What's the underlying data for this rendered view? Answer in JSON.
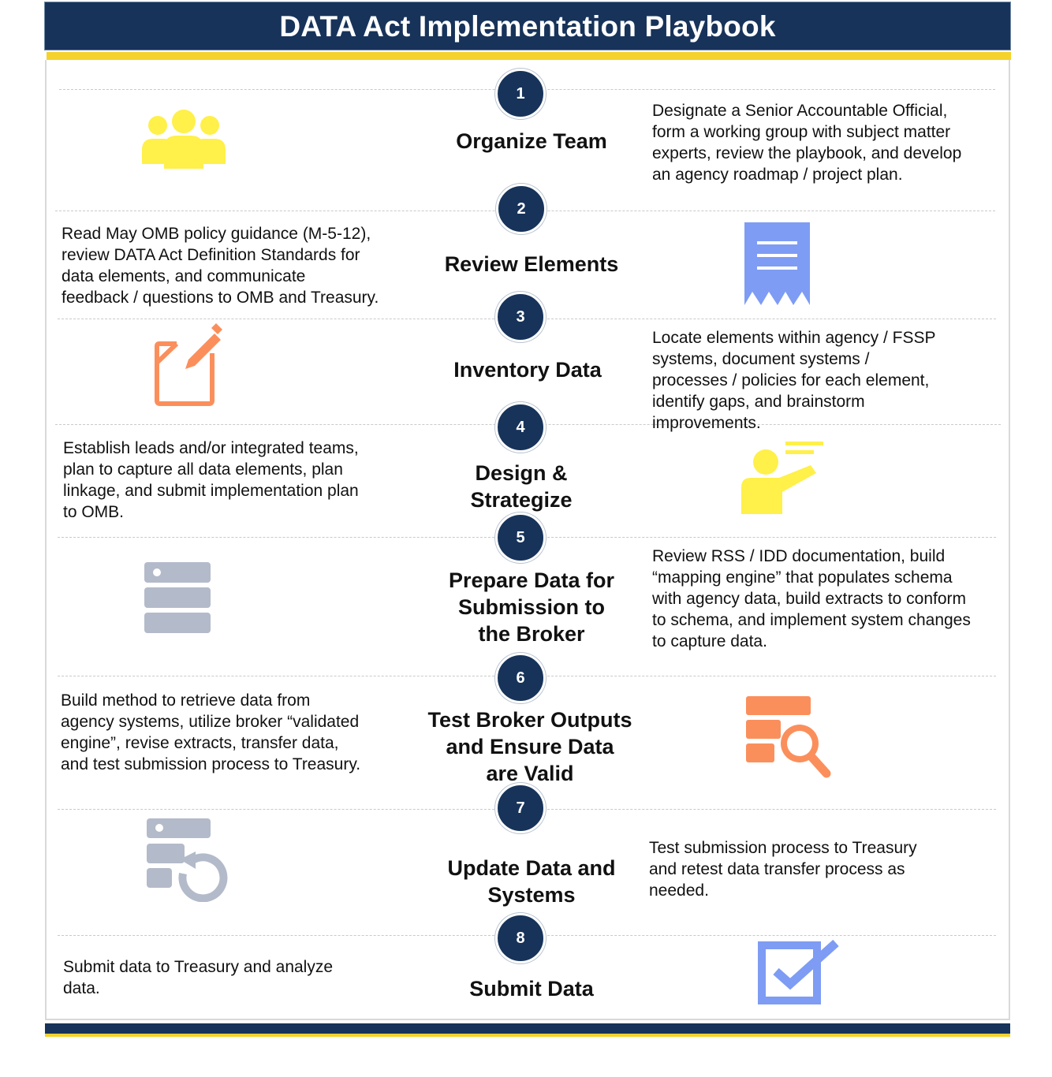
{
  "header": {
    "title": "DATA Act Implementation Playbook"
  },
  "colors": {
    "navy": "#17335a",
    "gold": "#f5d22c",
    "icon_yellow": "#fff04a",
    "icon_blue": "#7e9cf4",
    "icon_orange": "#fb8f5c",
    "icon_gray": "#b3bac9"
  },
  "steps": [
    {
      "number": "1",
      "title": "Organize Team",
      "description": "Designate a Senior Accountable Official,\nform a working group with subject matter\nexperts, review the playbook, and develop\nan agency roadmap / project plan.",
      "icon": "team-icon"
    },
    {
      "number": "2",
      "title": "Review Elements",
      "description": "Read May OMB policy guidance (M-5-12),\nreview DATA Act Definition Standards for\ndata elements, and communicate\nfeedback / questions to OMB and Treasury.",
      "icon": "receipt-document-icon"
    },
    {
      "number": "3",
      "title": "Inventory Data",
      "description": "Locate elements within agency / FSSP\nsystems, document systems /\nprocesses / policies for each element,\nidentify gaps, and brainstorm\nimprovements.",
      "icon": "edit-document-icon"
    },
    {
      "number": "4",
      "title": "Design &\nStrategize",
      "description": "Establish leads and/or integrated teams,\nplan to capture all data elements, plan\nlinkage, and submit implementation plan\nto OMB.",
      "icon": "presenter-icon"
    },
    {
      "number": "5",
      "title": "Prepare Data for\nSubmission to\nthe Broker",
      "description": "Review RSS / IDD documentation, build\n“mapping engine” that populates schema\nwith agency data, build extracts to conform\nto schema, and implement system changes\nto capture data.",
      "icon": "server-stack-icon"
    },
    {
      "number": "6",
      "title": "Test Broker Outputs\nand Ensure Data\nare Valid",
      "description": "Build method to retrieve data from\nagency systems, utilize broker “validated\nengine”, revise extracts, transfer data,\nand test submission process to Treasury.",
      "icon": "database-search-icon"
    },
    {
      "number": "7",
      "title": "Update Data and\nSystems",
      "description": "Test submission process to Treasury\nand retest data transfer process as\nneeded.",
      "icon": "server-refresh-icon"
    },
    {
      "number": "8",
      "title": "Submit Data",
      "description": "Submit data to Treasury and analyze\ndata.",
      "icon": "checkbox-icon"
    }
  ]
}
